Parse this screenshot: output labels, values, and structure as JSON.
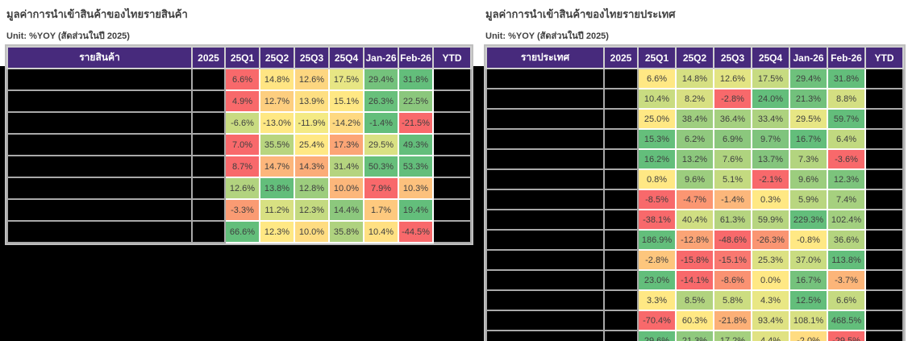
{
  "page": {
    "background": "#ffffff"
  },
  "palette": {
    "header_bg": "#472a7c",
    "header_text": "#ffffff",
    "grid": "#bfbfbf",
    "redacted": "#000000",
    "cell_text": "#3f3f3f",
    "title_text": "#404040",
    "scale_min": "#F8696B",
    "scale_mid": "#FFE884",
    "scale_max": "#63BE7B"
  },
  "chart_data": [
    {
      "type": "table",
      "title": "มูลค่าการนำเข้าสินค้าของไทยรายสินค้า",
      "unit_label": "Unit: %YOY (สัดส่วนในปี 2025)",
      "headers": [
        "รายสินค้า",
        "2025",
        "25Q1",
        "25Q2",
        "25Q3",
        "25Q4",
        "Jan-26",
        "Feb-26",
        "YTD"
      ],
      "redacted_columns": [
        "รายสินค้า",
        "2025",
        "YTD"
      ],
      "rows": [
        {
          "cells": [
            {
              "v": "6.6%",
              "c": "#F8696B"
            },
            {
              "v": "14.8%",
              "c": "#FFE583"
            },
            {
              "v": "12.6%",
              "c": "#FDD680"
            },
            {
              "v": "17.5%",
              "c": "#E7E684"
            },
            {
              "v": "29.4%",
              "c": "#74C27C"
            },
            {
              "v": "31.8%",
              "c": "#63BE7B"
            }
          ]
        },
        {
          "cells": [
            {
              "v": "4.9%",
              "c": "#F8696B"
            },
            {
              "v": "12.7%",
              "c": "#FDCE7F"
            },
            {
              "v": "13.9%",
              "c": "#FEDF82"
            },
            {
              "v": "15.1%",
              "c": "#FFE884"
            },
            {
              "v": "26.3%",
              "c": "#68C07B"
            },
            {
              "v": "22.5%",
              "c": "#8BC77D"
            }
          ]
        },
        {
          "cells": [
            {
              "v": "-6.6%",
              "c": "#C9DB81"
            },
            {
              "v": "-13.0%",
              "c": "#FFE884"
            },
            {
              "v": "-11.9%",
              "c": "#F4EA84"
            },
            {
              "v": "-14.2%",
              "c": "#FED981"
            },
            {
              "v": "-1.4%",
              "c": "#63BE7B"
            },
            {
              "v": "-21.5%",
              "c": "#F8696B"
            }
          ]
        },
        {
          "cells": [
            {
              "v": "7.0%",
              "c": "#F8696B"
            },
            {
              "v": "35.5%",
              "c": "#B8D57F"
            },
            {
              "v": "25.4%",
              "c": "#FFE884"
            },
            {
              "v": "17.3%",
              "c": "#FCA576"
            },
            {
              "v": "29.5%",
              "c": "#D9E183"
            },
            {
              "v": "49.3%",
              "c": "#63BE7B"
            }
          ]
        },
        {
          "cells": [
            {
              "v": "8.7%",
              "c": "#F8696B"
            },
            {
              "v": "14.7%",
              "c": "#FCB67B"
            },
            {
              "v": "14.3%",
              "c": "#FBAC78"
            },
            {
              "v": "31.4%",
              "c": "#B5D47F"
            },
            {
              "v": "50.3%",
              "c": "#66BF7B"
            },
            {
              "v": "53.3%",
              "c": "#63BE7B"
            }
          ]
        },
        {
          "cells": [
            {
              "v": "12.6%",
              "c": "#B2D37F"
            },
            {
              "v": "13.8%",
              "c": "#63BE7B"
            },
            {
              "v": "12.8%",
              "c": "#9DCD7E"
            },
            {
              "v": "10.0%",
              "c": "#FCB77B"
            },
            {
              "v": "7.9%",
              "c": "#F8696B"
            },
            {
              "v": "10.3%",
              "c": "#FCC17D"
            }
          ]
        },
        {
          "cells": [
            {
              "v": "-3.3%",
              "c": "#FA9B73"
            },
            {
              "v": "11.2%",
              "c": "#D8E082"
            },
            {
              "v": "12.3%",
              "c": "#C4DA80"
            },
            {
              "v": "14.4%",
              "c": "#8CC87D"
            },
            {
              "v": "1.7%",
              "c": "#FEC97E"
            },
            {
              "v": "19.4%",
              "c": "#63BE7B"
            }
          ]
        },
        {
          "cells": [
            {
              "v": "66.6%",
              "c": "#63BE7B"
            },
            {
              "v": "12.3%",
              "c": "#FFE884"
            },
            {
              "v": "10.0%",
              "c": "#FEDC81"
            },
            {
              "v": "35.8%",
              "c": "#AFD27F"
            },
            {
              "v": "10.4%",
              "c": "#FFE082"
            },
            {
              "v": "-44.5%",
              "c": "#F8696B"
            }
          ]
        }
      ]
    },
    {
      "type": "table",
      "title": "มูลค่าการนำเข้าสินค้าของไทยรายประเทศ",
      "unit_label": "Unit: %YOY (สัดส่วนในปี 2025)",
      "headers": [
        "รายประเทศ",
        "2025",
        "25Q1",
        "25Q2",
        "25Q3",
        "25Q4",
        "Jan-26",
        "Feb-26",
        "YTD"
      ],
      "redacted_columns": [
        "รายประเทศ",
        "2025",
        "YTD"
      ],
      "rows": [
        {
          "cells": [
            {
              "v": "6.6%",
              "c": "#FFE884"
            },
            {
              "v": "14.8%",
              "c": "#D6E082"
            },
            {
              "v": "12.6%",
              "c": "#E3E483"
            },
            {
              "v": "17.5%",
              "c": "#C7DB81"
            },
            {
              "v": "29.4%",
              "c": "#6EC17C"
            },
            {
              "v": "31.8%",
              "c": "#63BE7B"
            }
          ]
        },
        {
          "cells": [
            {
              "v": "10.4%",
              "c": "#C9DC81"
            },
            {
              "v": "8.2%",
              "c": "#D8E082"
            },
            {
              "v": "-2.8%",
              "c": "#F8696B"
            },
            {
              "v": "24.0%",
              "c": "#63BE7B"
            },
            {
              "v": "21.3%",
              "c": "#72C17C"
            },
            {
              "v": "8.8%",
              "c": "#D4DF82"
            }
          ]
        },
        {
          "cells": [
            {
              "v": "25.0%",
              "c": "#FFE884"
            },
            {
              "v": "38.4%",
              "c": "#9FCE7F"
            },
            {
              "v": "36.4%",
              "c": "#A5D07F"
            },
            {
              "v": "33.4%",
              "c": "#ADD27F"
            },
            {
              "v": "29.5%",
              "c": "#E7E684"
            },
            {
              "v": "59.7%",
              "c": "#63BE7B"
            }
          ]
        },
        {
          "cells": [
            {
              "v": "15.3%",
              "c": "#65BF7B"
            },
            {
              "v": "6.2%",
              "c": "#90C97E"
            },
            {
              "v": "6.9%",
              "c": "#8BC77D"
            },
            {
              "v": "9.7%",
              "c": "#7FC47D"
            },
            {
              "v": "16.7%",
              "c": "#63BE7B"
            },
            {
              "v": "6.4%",
              "c": "#C1D980"
            }
          ]
        },
        {
          "cells": [
            {
              "v": "16.2%",
              "c": "#63BE7B"
            },
            {
              "v": "13.2%",
              "c": "#8CC87D"
            },
            {
              "v": "7.6%",
              "c": "#AFD37F"
            },
            {
              "v": "13.7%",
              "c": "#84C57D"
            },
            {
              "v": "7.3%",
              "c": "#B3D47F"
            },
            {
              "v": "-3.6%",
              "c": "#F8696B"
            }
          ]
        },
        {
          "cells": [
            {
              "v": "0.8%",
              "c": "#FFE884"
            },
            {
              "v": "9.6%",
              "c": "#9CCD7E"
            },
            {
              "v": "5.1%",
              "c": "#C4DA80"
            },
            {
              "v": "-2.1%",
              "c": "#F8696B"
            },
            {
              "v": "9.6%",
              "c": "#9CCD7E"
            },
            {
              "v": "12.3%",
              "c": "#7CC47C"
            }
          ]
        },
        {
          "cells": [
            {
              "v": "-8.5%",
              "c": "#F8696B"
            },
            {
              "v": "-4.7%",
              "c": "#FB9672"
            },
            {
              "v": "-1.4%",
              "c": "#FCB77B"
            },
            {
              "v": "0.3%",
              "c": "#FFE884"
            },
            {
              "v": "5.9%",
              "c": "#B9D680"
            },
            {
              "v": "7.4%",
              "c": "#A6D07F"
            }
          ]
        },
        {
          "cells": [
            {
              "v": "-38.1%",
              "c": "#F8696B"
            },
            {
              "v": "40.4%",
              "c": "#D0DE82"
            },
            {
              "v": "61.3%",
              "c": "#B5D47F"
            },
            {
              "v": "59.9%",
              "c": "#B7D580"
            },
            {
              "v": "229.3%",
              "c": "#63BE7B"
            },
            {
              "v": "102.4%",
              "c": "#A2CF7F"
            }
          ]
        },
        {
          "cells": [
            {
              "v": "186.9%",
              "c": "#63BE7B"
            },
            {
              "v": "-12.8%",
              "c": "#FBA476"
            },
            {
              "v": "-48.6%",
              "c": "#F8696B"
            },
            {
              "v": "-26.3%",
              "c": "#FA9572"
            },
            {
              "v": "-0.8%",
              "c": "#FFE884"
            },
            {
              "v": "36.6%",
              "c": "#B4D47F"
            }
          ]
        },
        {
          "cells": [
            {
              "v": "-2.8%",
              "c": "#FDC67D"
            },
            {
              "v": "-15.8%",
              "c": "#F8696B"
            },
            {
              "v": "-15.1%",
              "c": "#F97870"
            },
            {
              "v": "25.3%",
              "c": "#DCE183"
            },
            {
              "v": "37.0%",
              "c": "#C9DC81"
            },
            {
              "v": "113.8%",
              "c": "#63BE7B"
            }
          ]
        },
        {
          "cells": [
            {
              "v": "23.0%",
              "c": "#63BE7B"
            },
            {
              "v": "-14.1%",
              "c": "#F8696B"
            },
            {
              "v": "-8.6%",
              "c": "#FA9272"
            },
            {
              "v": "0.0%",
              "c": "#FFE884"
            },
            {
              "v": "16.7%",
              "c": "#75C27C"
            },
            {
              "v": "-3.7%",
              "c": "#FCB579"
            }
          ]
        },
        {
          "cells": [
            {
              "v": "3.3%",
              "c": "#FFE884"
            },
            {
              "v": "8.5%",
              "c": "#B1D37F"
            },
            {
              "v": "5.8%",
              "c": "#CCDD81"
            },
            {
              "v": "4.3%",
              "c": "#E9E784"
            },
            {
              "v": "12.5%",
              "c": "#63BE7B"
            },
            {
              "v": "6.6%",
              "c": "#C5DA81"
            }
          ]
        },
        {
          "cells": [
            {
              "v": "-70.4%",
              "c": "#F8696B"
            },
            {
              "v": "60.3%",
              "c": "#FFE884"
            },
            {
              "v": "-21.8%",
              "c": "#FCB077"
            },
            {
              "v": "93.4%",
              "c": "#DFE283"
            },
            {
              "v": "108.1%",
              "c": "#D8E083"
            },
            {
              "v": "468.5%",
              "c": "#63BE7B"
            }
          ]
        },
        {
          "cells": [
            {
              "v": "29.6%",
              "c": "#63BE7B"
            },
            {
              "v": "21.3%",
              "c": "#8FC97E"
            },
            {
              "v": "17.2%",
              "c": "#A5D07F"
            },
            {
              "v": "4.4%",
              "c": "#E0E283"
            },
            {
              "v": "-2.0%",
              "c": "#FFDC81"
            },
            {
              "v": "-29.5%",
              "c": "#F8696B"
            }
          ]
        }
      ]
    }
  ]
}
